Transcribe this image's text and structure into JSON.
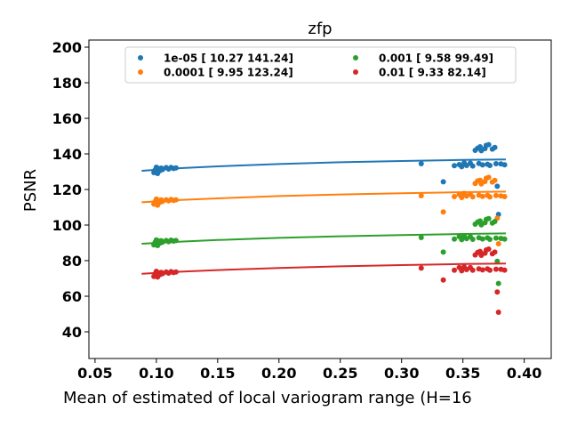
{
  "chart_data": {
    "type": "scatter",
    "title": "zfp",
    "xlabel": "Mean of estimated of local variogram range (H=16",
    "ylabel": "PSNR",
    "xlim": [
      0.045,
      0.422
    ],
    "ylim": [
      25,
      204
    ],
    "xticks": [
      0.05,
      0.1,
      0.15,
      0.2,
      0.25,
      0.3,
      0.35,
      0.4
    ],
    "xtick_labels": [
      "0.05",
      "0.10",
      "0.15",
      "0.20",
      "0.25",
      "0.30",
      "0.35",
      "0.40"
    ],
    "yticks": [
      40,
      60,
      80,
      100,
      120,
      140,
      160,
      180,
      200
    ],
    "ytick_labels": [
      "40",
      "60",
      "80",
      "100",
      "120",
      "140",
      "160",
      "180",
      "200"
    ],
    "grid": false,
    "legend_placement": "top-center",
    "legend_columns": 2,
    "series": [
      {
        "name": "1e-05 [ 10.27 141.24]",
        "color": "#1f77b4",
        "points": [
          [
            0.098,
            129.5
          ],
          [
            0.099,
            131.0
          ],
          [
            0.1,
            132.5
          ],
          [
            0.1,
            130.2
          ],
          [
            0.101,
            129.0
          ],
          [
            0.102,
            131.8
          ],
          [
            0.103,
            130.6
          ],
          [
            0.104,
            132.0
          ],
          [
            0.105,
            131.2
          ],
          [
            0.108,
            132.3
          ],
          [
            0.11,
            131.5
          ],
          [
            0.112,
            132.4
          ],
          [
            0.114,
            131.8
          ],
          [
            0.116,
            132.1
          ],
          [
            0.316,
            134.5
          ],
          [
            0.334,
            124.3
          ],
          [
            0.343,
            133.4
          ],
          [
            0.347,
            134.0
          ],
          [
            0.349,
            132.8
          ],
          [
            0.351,
            135.0
          ],
          [
            0.353,
            133.5
          ],
          [
            0.356,
            134.8
          ],
          [
            0.358,
            133.2
          ],
          [
            0.36,
            142.0
          ],
          [
            0.362,
            143.2
          ],
          [
            0.363,
            134.6
          ],
          [
            0.364,
            144.0
          ],
          [
            0.365,
            141.8
          ],
          [
            0.366,
            133.8
          ],
          [
            0.368,
            143.0
          ],
          [
            0.369,
            144.8
          ],
          [
            0.37,
            134.2
          ],
          [
            0.371,
            145.2
          ],
          [
            0.372,
            133.5
          ],
          [
            0.374,
            142.7
          ],
          [
            0.376,
            143.6
          ],
          [
            0.377,
            134.5
          ],
          [
            0.378,
            121.8
          ],
          [
            0.379,
            106.0
          ],
          [
            0.381,
            134.4
          ],
          [
            0.384,
            133.9
          ]
        ],
        "fit": [
          [
            0.088,
            130.5
          ],
          [
            0.12,
            132.0
          ],
          [
            0.15,
            133.0
          ],
          [
            0.2,
            134.3
          ],
          [
            0.25,
            135.3
          ],
          [
            0.3,
            136.0
          ],
          [
            0.35,
            136.6
          ],
          [
            0.385,
            136.9
          ]
        ]
      },
      {
        "name": "0.0001 [  9.95 123.24]",
        "color": "#ff7f0e",
        "points": [
          [
            0.098,
            111.8
          ],
          [
            0.099,
            113.2
          ],
          [
            0.1,
            114.6
          ],
          [
            0.1,
            112.5
          ],
          [
            0.101,
            111.2
          ],
          [
            0.102,
            113.9
          ],
          [
            0.103,
            112.8
          ],
          [
            0.104,
            114.1
          ],
          [
            0.105,
            113.3
          ],
          [
            0.108,
            114.2
          ],
          [
            0.11,
            113.6
          ],
          [
            0.112,
            114.4
          ],
          [
            0.114,
            113.9
          ],
          [
            0.116,
            114.2
          ],
          [
            0.316,
            116.5
          ],
          [
            0.334,
            107.4
          ],
          [
            0.343,
            116.0
          ],
          [
            0.347,
            117.2
          ],
          [
            0.349,
            115.5
          ],
          [
            0.351,
            117.8
          ],
          [
            0.353,
            116.3
          ],
          [
            0.356,
            117.4
          ],
          [
            0.358,
            115.9
          ],
          [
            0.36,
            123.4
          ],
          [
            0.362,
            124.8
          ],
          [
            0.363,
            116.8
          ],
          [
            0.364,
            125.2
          ],
          [
            0.365,
            123.1
          ],
          [
            0.366,
            116.1
          ],
          [
            0.368,
            124.5
          ],
          [
            0.369,
            126.3
          ],
          [
            0.37,
            116.7
          ],
          [
            0.371,
            126.8
          ],
          [
            0.372,
            115.8
          ],
          [
            0.374,
            124.2
          ],
          [
            0.376,
            125.1
          ],
          [
            0.377,
            116.6
          ],
          [
            0.378,
            103.9
          ],
          [
            0.379,
            89.5
          ],
          [
            0.381,
            116.4
          ],
          [
            0.384,
            116.0
          ]
        ],
        "fit": [
          [
            0.088,
            112.8
          ],
          [
            0.12,
            114.1
          ],
          [
            0.15,
            115.0
          ],
          [
            0.2,
            116.3
          ],
          [
            0.25,
            117.2
          ],
          [
            0.3,
            117.9
          ],
          [
            0.35,
            118.5
          ],
          [
            0.385,
            118.8
          ]
        ]
      },
      {
        "name": "0.001 [ 9.58 99.49]",
        "color": "#2ca02c",
        "points": [
          [
            0.098,
            88.9
          ],
          [
            0.099,
            90.3
          ],
          [
            0.1,
            91.6
          ],
          [
            0.1,
            89.7
          ],
          [
            0.101,
            88.5
          ],
          [
            0.102,
            91.0
          ],
          [
            0.103,
            89.9
          ],
          [
            0.104,
            91.2
          ],
          [
            0.105,
            90.4
          ],
          [
            0.108,
            91.3
          ],
          [
            0.11,
            90.7
          ],
          [
            0.112,
            91.5
          ],
          [
            0.114,
            91.0
          ],
          [
            0.116,
            91.3
          ],
          [
            0.316,
            93.0
          ],
          [
            0.334,
            84.8
          ],
          [
            0.343,
            92.1
          ],
          [
            0.347,
            93.5
          ],
          [
            0.349,
            91.8
          ],
          [
            0.351,
            93.9
          ],
          [
            0.353,
            92.4
          ],
          [
            0.356,
            93.5
          ],
          [
            0.358,
            92.0
          ],
          [
            0.36,
            100.5
          ],
          [
            0.362,
            101.7
          ],
          [
            0.363,
            92.9
          ],
          [
            0.364,
            102.3
          ],
          [
            0.365,
            100.1
          ],
          [
            0.366,
            92.2
          ],
          [
            0.368,
            101.3
          ],
          [
            0.369,
            103.2
          ],
          [
            0.37,
            92.8
          ],
          [
            0.371,
            103.6
          ],
          [
            0.372,
            92.0
          ],
          [
            0.374,
            101.1
          ],
          [
            0.376,
            102.0
          ],
          [
            0.377,
            92.7
          ],
          [
            0.378,
            79.6
          ],
          [
            0.379,
            67.2
          ],
          [
            0.381,
            92.5
          ],
          [
            0.384,
            92.1
          ]
        ],
        "fit": [
          [
            0.088,
            89.5
          ],
          [
            0.12,
            90.7
          ],
          [
            0.15,
            91.6
          ],
          [
            0.2,
            92.8
          ],
          [
            0.25,
            93.7
          ],
          [
            0.3,
            94.4
          ],
          [
            0.35,
            95.0
          ],
          [
            0.385,
            95.3
          ]
        ]
      },
      {
        "name": "0.01 [ 9.33 82.14]",
        "color": "#d62728",
        "points": [
          [
            0.098,
            71.1
          ],
          [
            0.099,
            72.6
          ],
          [
            0.1,
            74.0
          ],
          [
            0.1,
            71.9
          ],
          [
            0.101,
            70.8
          ],
          [
            0.102,
            73.2
          ],
          [
            0.103,
            72.2
          ],
          [
            0.104,
            73.4
          ],
          [
            0.105,
            72.7
          ],
          [
            0.108,
            73.6
          ],
          [
            0.11,
            73.0
          ],
          [
            0.112,
            73.8
          ],
          [
            0.114,
            73.3
          ],
          [
            0.116,
            73.6
          ],
          [
            0.316,
            75.8
          ],
          [
            0.334,
            69.1
          ],
          [
            0.343,
            74.6
          ],
          [
            0.347,
            76.1
          ],
          [
            0.349,
            74.3
          ],
          [
            0.351,
            76.5
          ],
          [
            0.353,
            75.0
          ],
          [
            0.356,
            76.1
          ],
          [
            0.358,
            74.6
          ],
          [
            0.36,
            83.2
          ],
          [
            0.362,
            84.6
          ],
          [
            0.363,
            75.4
          ],
          [
            0.364,
            85.2
          ],
          [
            0.365,
            83.0
          ],
          [
            0.366,
            74.8
          ],
          [
            0.368,
            84.2
          ],
          [
            0.369,
            86.0
          ],
          [
            0.37,
            75.4
          ],
          [
            0.371,
            86.5
          ],
          [
            0.372,
            74.6
          ],
          [
            0.374,
            83.9
          ],
          [
            0.376,
            84.8
          ],
          [
            0.377,
            75.2
          ],
          [
            0.378,
            62.4
          ],
          [
            0.379,
            51.0
          ],
          [
            0.381,
            75.1
          ],
          [
            0.384,
            74.7
          ]
        ],
        "fit": [
          [
            0.088,
            72.6
          ],
          [
            0.12,
            73.8
          ],
          [
            0.15,
            74.7
          ],
          [
            0.2,
            75.9
          ],
          [
            0.25,
            76.8
          ],
          [
            0.3,
            77.5
          ],
          [
            0.35,
            78.1
          ],
          [
            0.385,
            78.4
          ]
        ]
      }
    ]
  }
}
